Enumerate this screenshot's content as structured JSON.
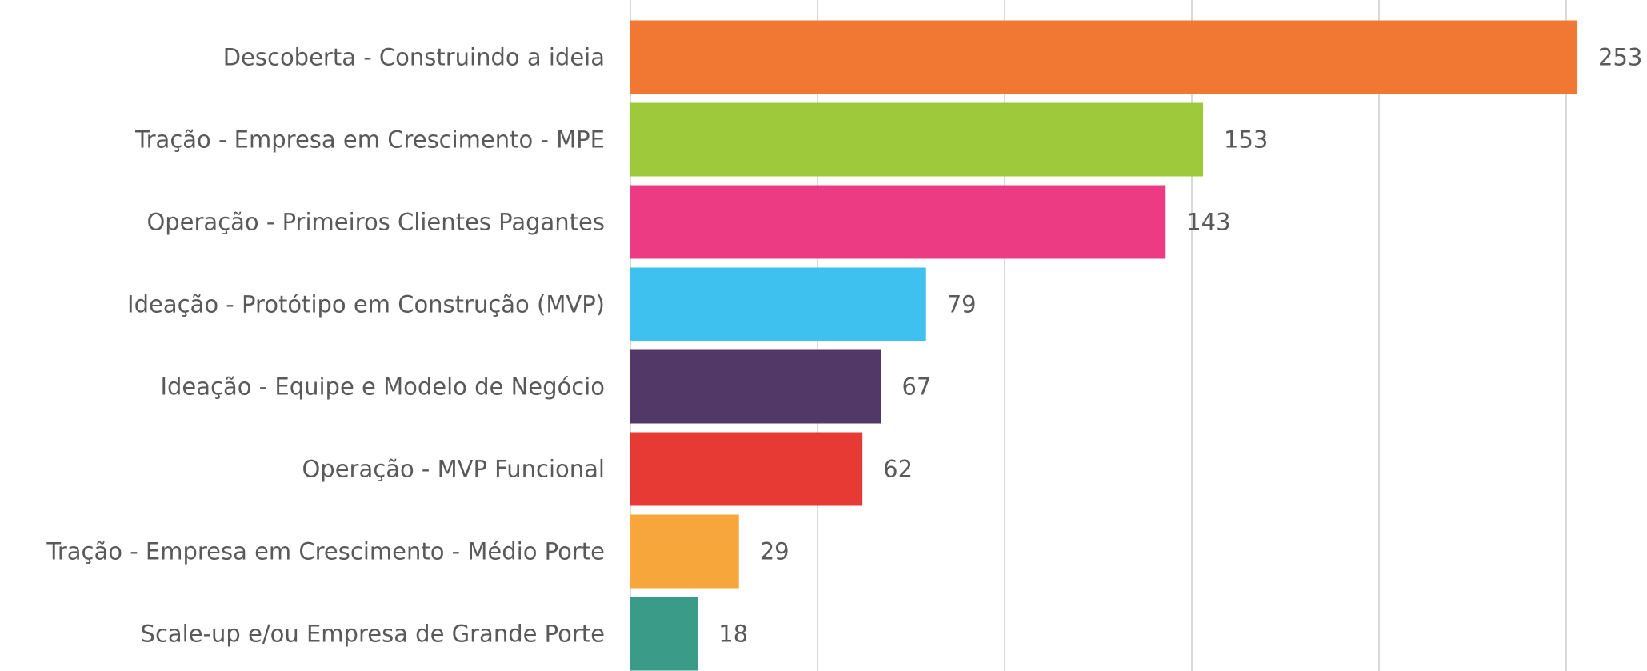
{
  "chart_data": {
    "type": "bar",
    "orientation": "horizontal",
    "categories": [
      "Descoberta - Construindo a ideia",
      "Tração - Empresa em Crescimento - MPE",
      "Operação - Primeiros Clientes Pagantes",
      "Ideação - Protótipo em Construção (MVP)",
      "Ideação - Equipe e Modelo de Negócio",
      "Operação - MVP Funcional",
      "Tração - Empresa em Crescimento - Médio Porte",
      "Scale-up e/ou Empresa de Grande Porte"
    ],
    "values": [
      253,
      153,
      143,
      79,
      67,
      62,
      29,
      18
    ],
    "colors": [
      "#f07832",
      "#9dc93b",
      "#ec3b83",
      "#3ec1ee",
      "#523867",
      "#e83a35",
      "#f7a63b",
      "#3a9c88"
    ],
    "xlim": [
      0,
      250
    ],
    "xticks": [
      0,
      50,
      100,
      150,
      200,
      250
    ],
    "grid": true
  }
}
